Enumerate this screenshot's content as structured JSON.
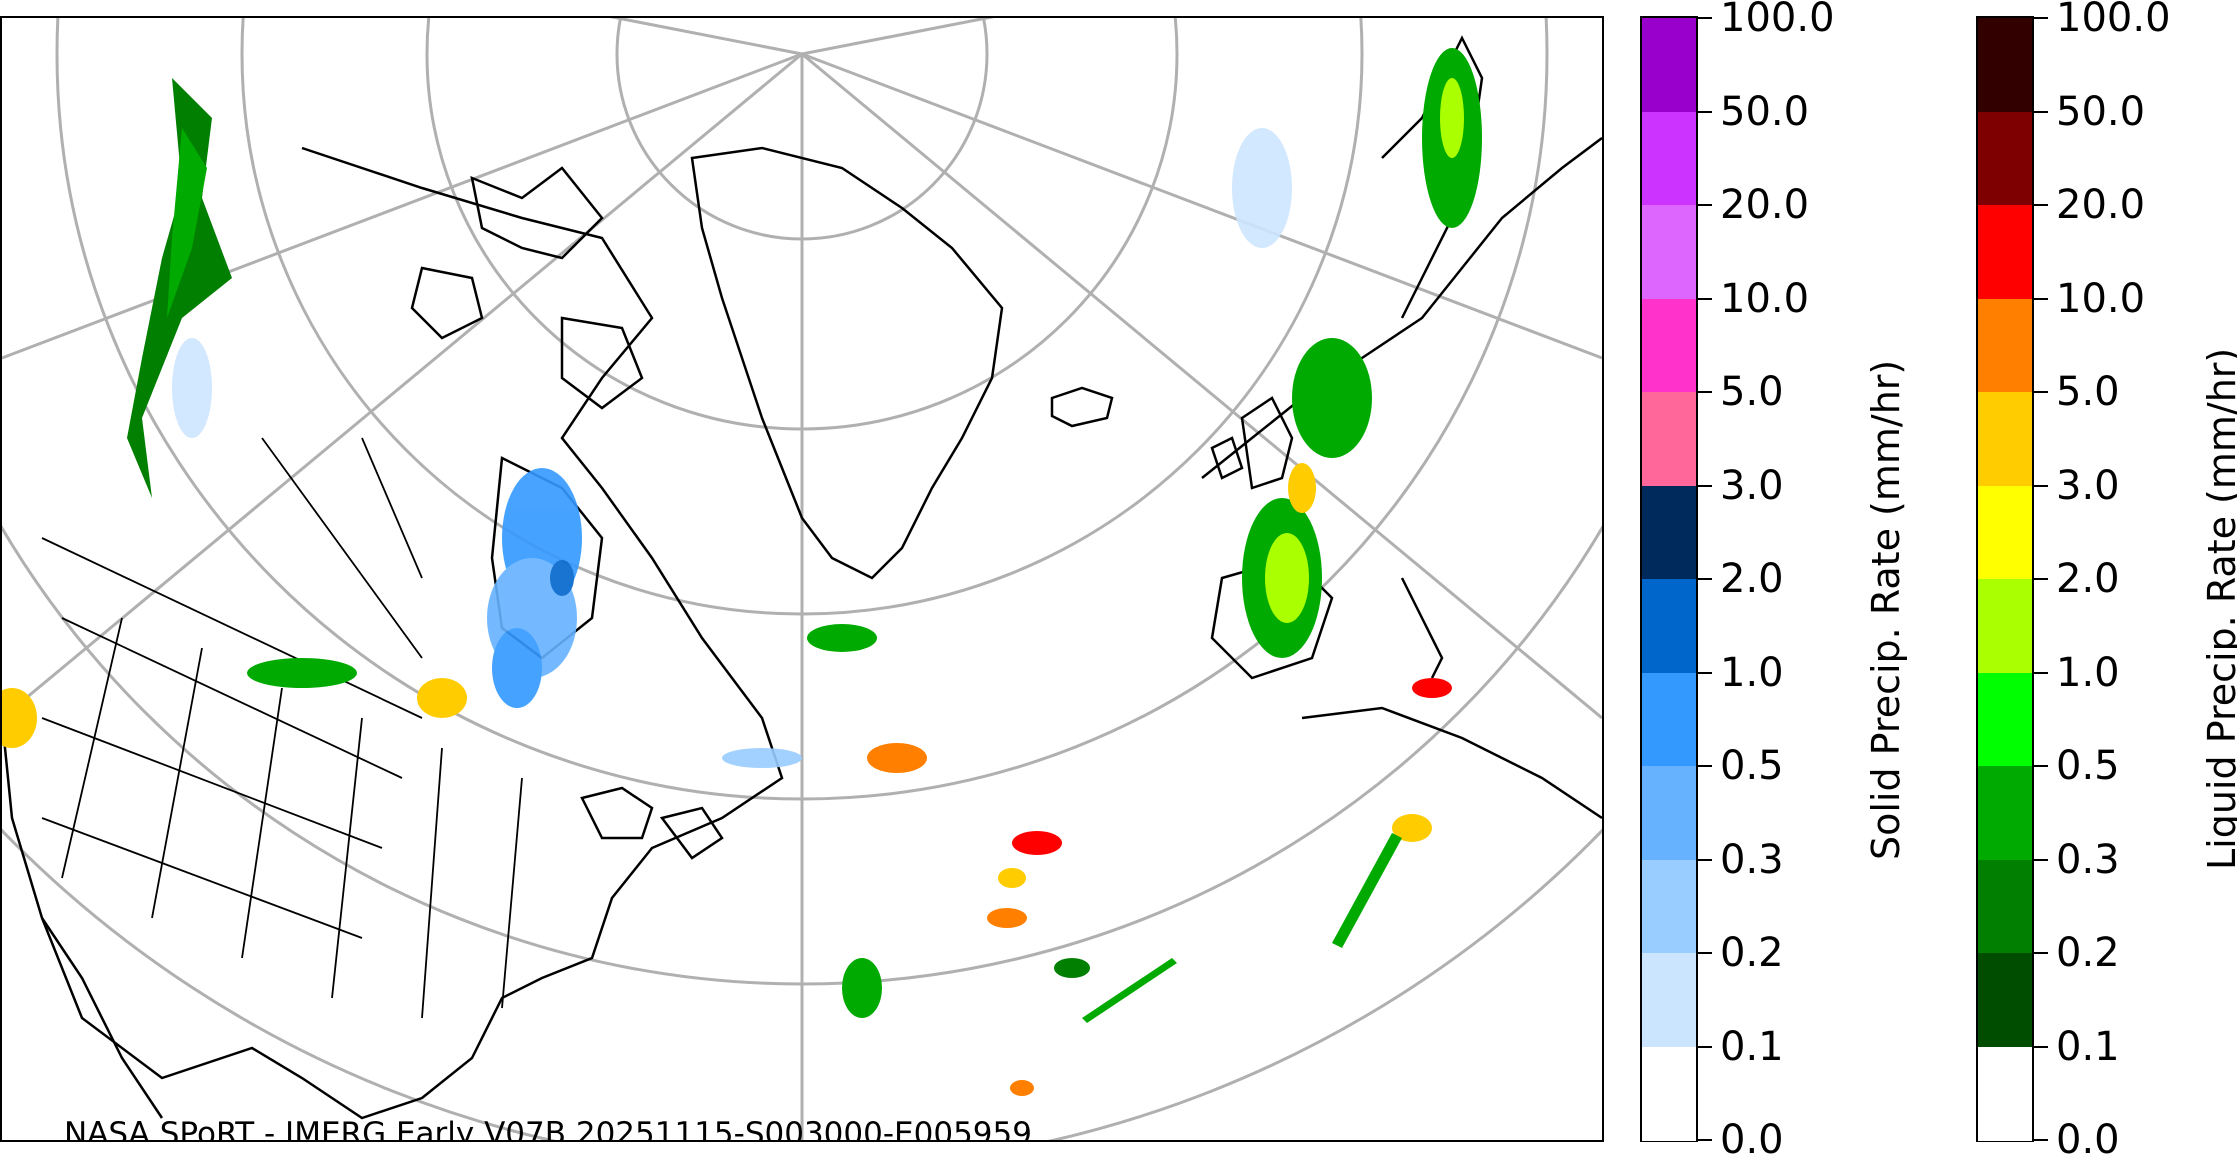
{
  "map": {
    "credit": "NASA SPoRT - IMERG Early V07B 20251115-S003000-E005959"
  },
  "solid_colorbar": {
    "title": "Solid Precip. Rate (mm/hr)",
    "ticks": [
      "100.0",
      "50.0",
      "20.0",
      "10.0",
      "5.0",
      "3.0",
      "2.0",
      "1.0",
      "0.5",
      "0.3",
      "0.2",
      "0.1",
      "0.0"
    ],
    "colors": [
      "#9900cc",
      "#cc33ff",
      "#dd66ff",
      "#ff33cc",
      "#ff6699",
      "#002a5c",
      "#0066cc",
      "#3399ff",
      "#66b2ff",
      "#99ccff",
      "#cce5ff",
      "#ffffff"
    ]
  },
  "liquid_colorbar": {
    "title": "Liquid Precip. Rate (mm/hr)",
    "ticks": [
      "100.0",
      "50.0",
      "20.0",
      "10.0",
      "5.0",
      "3.0",
      "2.0",
      "1.0",
      "0.5",
      "0.3",
      "0.2",
      "0.1",
      "0.0"
    ],
    "colors": [
      "#330000",
      "#7f0000",
      "#ff0000",
      "#ff8000",
      "#ffcc00",
      "#ffff00",
      "#aaff00",
      "#00ff00",
      "#00aa00",
      "#007f00",
      "#004d00",
      "#ffffff"
    ]
  }
}
